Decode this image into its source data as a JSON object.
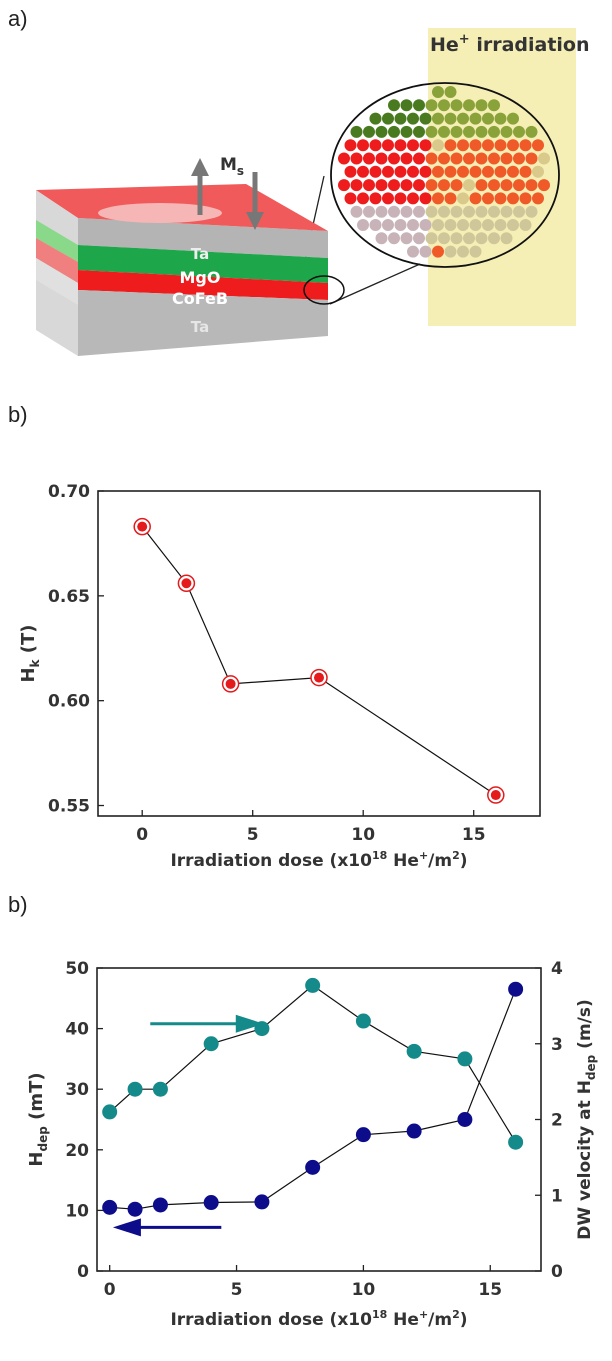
{
  "panel_a": {
    "label": "a)",
    "irradiation_label": "He",
    "irradiation_sup": "+",
    "irradiation_word": " irradiation",
    "ms_label": "M",
    "ms_sub": "s",
    "layers": [
      "Ta",
      "MgO",
      "CoFeB",
      "Ta"
    ],
    "colors": {
      "zone": "#f5efb6",
      "ta_top": "#f05a5a",
      "mgo": "#1ea64a",
      "cofeb": "#ee1c1c",
      "ta": "#b4b4b4"
    }
  },
  "chart_data": [
    {
      "type": "line",
      "panel_label": "b)",
      "x": [
        0,
        2,
        4,
        8,
        16
      ],
      "series": [
        {
          "values": [
            0.683,
            0.656,
            0.608,
            0.611,
            0.555
          ],
          "color": "#e41a1c"
        }
      ],
      "xlabel_prefix": "Irradiation dose (x10",
      "xlabel_exp": "18",
      "xlabel_mid": " He",
      "xlabel_plus": "+",
      "xlabel_mid2": "/m",
      "xlabel_sq": "2",
      "xlabel_suffix": ")",
      "ylabel_main": "H",
      "ylabel_sub": "k",
      "ylabel_unit": " (T)",
      "xlim": [
        -2,
        18
      ],
      "ylim": [
        0.545,
        0.7
      ],
      "xticks": [
        "0",
        "5",
        "10",
        "15"
      ],
      "yticks": [
        "0.55",
        "0.60",
        "0.65",
        "0.70"
      ],
      "grid": false
    },
    {
      "type": "line",
      "panel_label": "b)",
      "x": [
        0,
        1,
        2,
        4,
        6,
        8,
        10,
        12,
        14,
        16
      ],
      "series": [
        {
          "axis": "left",
          "values": [
            10.5,
            10.2,
            10.9,
            11.3,
            11.4,
            17.1,
            22.5,
            23.1,
            25.0,
            46.5
          ],
          "color": "#0d0d8c"
        },
        {
          "axis": "right",
          "values": [
            2.1,
            2.4,
            2.4,
            3.0,
            3.2,
            3.77,
            3.3,
            2.9,
            2.8,
            1.7
          ],
          "color": "#158a8a"
        }
      ],
      "xlabel_prefix": "Irradiation dose (x10",
      "xlabel_exp": "18",
      "xlabel_mid": " He",
      "xlabel_plus": "+",
      "xlabel_mid2": "/m",
      "xlabel_sq": "2",
      "xlabel_suffix": ")",
      "ylabel_left_main": "H",
      "ylabel_left_sub": "dep",
      "ylabel_left_unit": " (mT)",
      "ylabel_right_main": "DW velocity at H",
      "ylabel_right_sub": "dep",
      "ylabel_right_unit": " (m/s)",
      "xlim": [
        -0.5,
        17
      ],
      "ylim_left": [
        0,
        50
      ],
      "ylim_right": [
        0,
        4
      ],
      "xticks": [
        "0",
        "5",
        "10",
        "15"
      ],
      "yticks_left": [
        "0",
        "10",
        "20",
        "30",
        "40",
        "50"
      ],
      "yticks_right": [
        "0",
        "1",
        "2",
        "3",
        "4"
      ],
      "grid": false
    }
  ]
}
